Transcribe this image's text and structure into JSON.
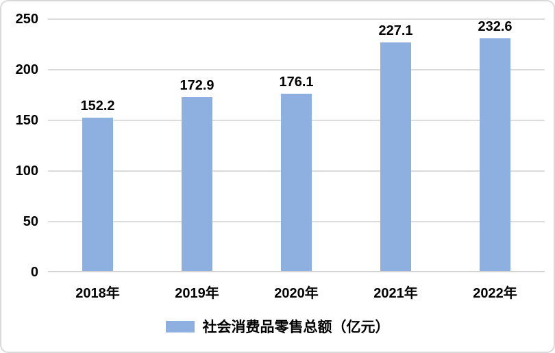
{
  "chart_data": {
    "type": "bar",
    "categories": [
      "2018年",
      "2019年",
      "2020年",
      "2021年",
      "2022年"
    ],
    "values": [
      152.2,
      172.9,
      176.1,
      227.1,
      232.6
    ],
    "series_name": "社会消费品零售总额（亿元）",
    "title": "",
    "xlabel": "",
    "ylabel": "",
    "ylim": [
      0,
      250
    ],
    "yticks": [
      250,
      200,
      150,
      100,
      50,
      0
    ],
    "grid": "horizontal",
    "legend_position": "bottom"
  },
  "legend": {
    "label": "社会消费品零售总额（亿元）"
  },
  "colors": {
    "bar": "#8DB0E0",
    "gridline": "#DCDCDC",
    "axis_line": "#D3D3D3",
    "border": "#D9D9D9",
    "text": "#000000",
    "background": "#FFFFFF"
  }
}
